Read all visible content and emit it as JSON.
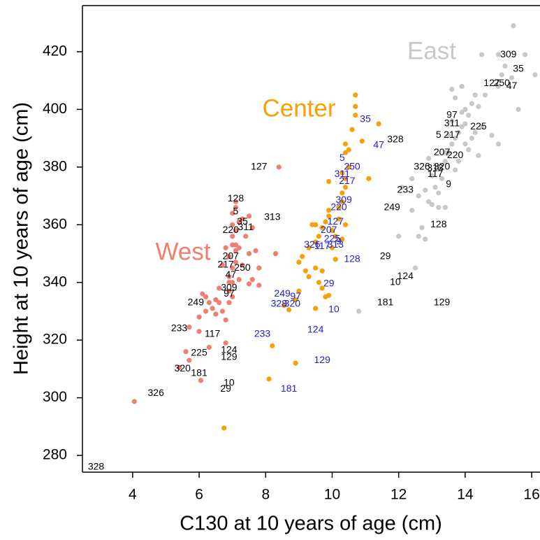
{
  "chart_data": {
    "type": "scatter",
    "xlabel": "C130 at 10 years of age (cm)",
    "ylabel": "Height at 10 years of age (cm)",
    "xlim": [
      2.49,
      16.25
    ],
    "ylim": [
      274.2,
      436.0
    ],
    "xticks": [
      4,
      6,
      8,
      10,
      12,
      14,
      16
    ],
    "yticks": [
      280,
      300,
      320,
      340,
      360,
      380,
      400,
      420
    ],
    "series": [
      {
        "name": "West",
        "color": "#f07f73",
        "x": [
          4.05,
          5.4,
          5.7,
          5.6,
          6.05,
          6.0,
          6.3,
          6.8,
          5.7,
          6.0,
          6.2,
          6.4,
          6.6,
          6.5,
          6.2,
          6.1,
          6.3,
          6.5,
          6.7,
          6.8,
          6.9,
          7.0,
          6.9,
          7.0,
          6.9,
          7.0,
          7.1,
          6.9,
          7.1,
          7.0,
          7.2,
          7.0,
          7.1,
          7.0,
          7.2,
          7.0,
          7.1,
          7.1,
          7.3,
          7.5,
          7.6,
          7.4,
          7.7,
          7.5,
          7.3,
          7.8,
          7.6,
          7.8,
          7.5,
          7.2,
          8.4,
          7.1,
          6.8,
          6.7,
          6.9,
          6.6,
          8.3
        ],
        "y": [
          298.7,
          310.5,
          313,
          316,
          306,
          323,
          317.5,
          319,
          324.5,
          328,
          330,
          331,
          333,
          334,
          335,
          336,
          333,
          329,
          330,
          327,
          333,
          335,
          337,
          340,
          342,
          345,
          347,
          349,
          351,
          353,
          352,
          356,
          358,
          360,
          361,
          364,
          366,
          368,
          362,
          363,
          359,
          356,
          351,
          350,
          346,
          345,
          341,
          339,
          339.5,
          341,
          380,
          353,
          352,
          346,
          340,
          338,
          350
        ]
      },
      {
        "name": "Center",
        "color": "#f6a10a",
        "x": [
          6.75,
          8.1,
          8.2,
          8.9,
          8.55,
          8.7,
          8.9,
          9.0,
          9.2,
          9.3,
          9.5,
          9.5,
          9.6,
          9.7,
          9.7,
          9.8,
          9.9,
          9.1,
          9.3,
          9.5,
          9.6,
          9.5,
          9.7,
          9.8,
          9.9,
          9.9,
          10.0,
          10.1,
          10.0,
          10.1,
          10.3,
          10.2,
          10.2,
          10.3,
          10.3,
          10.4,
          10.4,
          10.3,
          10.5,
          9.9,
          10.4,
          10.4,
          10.5,
          10.6,
          10.7,
          10.7,
          10.7,
          11.4,
          10.9,
          11.1,
          10.4,
          9.4,
          9.0
        ],
        "y": [
          289.5,
          306.5,
          318,
          312,
          332,
          330.5,
          334,
          337,
          344,
          342,
          331,
          345,
          340,
          338,
          344,
          335,
          335.5,
          349,
          352,
          354,
          356,
          360,
          359,
          361,
          363,
          365,
          358,
          356,
          352,
          348,
          355,
          362,
          366,
          368,
          371,
          373,
          376,
          378,
          380,
          375,
          385,
          388,
          386,
          393,
          398,
          401,
          405,
          395,
          389,
          376,
          360,
          360,
          347
        ]
      },
      {
        "name": "East",
        "color": "#c8c8c8",
        "x": [
          10.8,
          12.0,
          12.5,
          12.6,
          12.7,
          12.8,
          12.4,
          12.6,
          12.9,
          13.0,
          12.8,
          13.1,
          13.2,
          13.3,
          13.0,
          13.2,
          13.4,
          13.5,
          13.6,
          13.7,
          13.5,
          13.8,
          13.9,
          14.0,
          14.1,
          14.0,
          14.2,
          13.7,
          13.6,
          13.9,
          14.3,
          14.4,
          14.0,
          14.1,
          14.2,
          14.3,
          14.5,
          14.8,
          15.0,
          13.8,
          13.7,
          13.4,
          13.2,
          13.4,
          15.0,
          15.1,
          15.2,
          15.0,
          15.4,
          15.6,
          15.45,
          15.8,
          16.1,
          14.5,
          12.4,
          12.9,
          14.6,
          12.1,
          13.6,
          13.9,
          14.4
        ],
        "y": [
          330,
          356,
          345,
          356,
          359,
          355,
          365,
          370,
          368,
          367,
          372,
          373,
          371,
          376,
          377,
          380,
          382,
          385,
          388,
          390,
          391,
          392,
          394,
          395,
          398,
          400,
          402,
          404,
          407,
          408,
          405,
          401,
          388,
          386,
          390,
          392,
          394,
          391,
          388,
          382,
          379,
          366,
          366,
          385,
          408,
          412,
          415,
          419,
          411,
          400,
          429,
          419,
          412,
          419,
          376,
          383,
          405,
          373,
          396,
          399,
          384
        ]
      }
    ],
    "point_labels": [
      {
        "color": "#000000",
        "labels": [
          "328",
          "326",
          "320",
          "181",
          "29",
          "10",
          "129",
          "124",
          "225",
          "233",
          "117",
          "249",
          "97",
          "309",
          "47",
          "250",
          "217",
          "207",
          "220",
          "311",
          "35",
          "5",
          "313",
          "128",
          "127"
        ],
        "x": [
          2.9,
          4.7,
          5.5,
          6.0,
          6.8,
          6.9,
          6.9,
          6.9,
          6.0,
          5.4,
          6.4,
          5.9,
          6.9,
          6.9,
          6.95,
          7.3,
          6.8,
          6.95,
          6.95,
          7.4,
          7.3,
          7.1,
          8.2,
          7.1,
          7.8
        ],
        "y": [
          276,
          301.5,
          310,
          308.5,
          303,
          305,
          314,
          316.5,
          315.5,
          324,
          322,
          333,
          336,
          338,
          342.5,
          345,
          346,
          349,
          358,
          359,
          361,
          364.5,
          362.5,
          369,
          380
        ]
      },
      {
        "color": "#000000",
        "labels": [
          "328",
          "326",
          "313",
          "320",
          "117",
          "9",
          "233",
          "249",
          "128",
          "29",
          "124",
          "10",
          "181",
          "129",
          "97",
          "311",
          "5",
          "217",
          "225",
          "207",
          "220",
          "309",
          "35",
          "127",
          "250",
          "47"
        ],
        "x": [
          11.9,
          12.7,
          13.1,
          13.3,
          13.1,
          13.5,
          12.2,
          11.8,
          13.2,
          11.6,
          12.2,
          11.9,
          11.6,
          13.3,
          13.6,
          13.6,
          13.2,
          13.6,
          14.4,
          13.3,
          13.7,
          15.3,
          15.6,
          14.8,
          15.1,
          15.4
        ],
        "y": [
          389.5,
          380,
          379.5,
          380,
          377.5,
          374,
          372,
          366,
          360,
          349,
          342,
          340,
          333,
          333,
          398,
          395,
          391,
          391,
          394,
          385,
          384,
          419,
          414,
          409,
          409,
          408
        ]
      },
      {
        "color": "#2020d0",
        "labels": [
          "35",
          "47",
          "5",
          "250",
          "311",
          "217",
          "309",
          "220",
          "127",
          "207",
          "225",
          "9",
          "326",
          "117",
          "313",
          "128",
          "29",
          "249",
          "97",
          "328",
          "320",
          "10",
          "124",
          "233",
          "129",
          "181"
        ],
        "x": [
          11.0,
          11.4,
          10.3,
          10.6,
          10.3,
          10.45,
          10.35,
          10.2,
          10.1,
          9.9,
          10.0,
          10.2,
          9.4,
          9.7,
          10.1,
          10.6,
          9.9,
          8.5,
          8.9,
          8.4,
          8.8,
          10.05,
          9.5,
          7.9,
          9.7,
          8.7
        ],
        "y": [
          396.5,
          387.5,
          383,
          380,
          377.5,
          375,
          368.5,
          366,
          361,
          358,
          355,
          354,
          353,
          352.5,
          353,
          348,
          339.5,
          336,
          335,
          332.5,
          332.5,
          330.5,
          323.5,
          322,
          313,
          303
        ]
      }
    ]
  }
}
